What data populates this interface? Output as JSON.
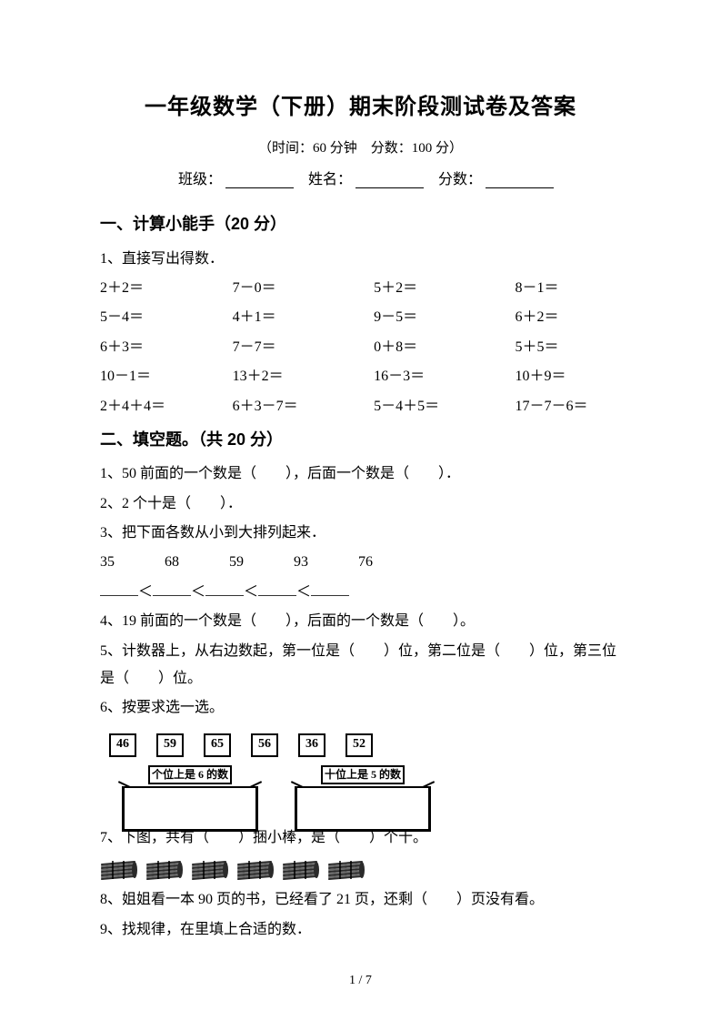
{
  "title": "一年级数学（下册）期末阶段测试卷及答案",
  "meta": {
    "time_label": "（时间：",
    "time": "60 分钟",
    "score_label": "分数：",
    "score": "100 分)",
    "full_line": "（时间：60 分钟 分数：100 分）"
  },
  "info": {
    "class": "班级：",
    "name": "姓名：",
    "score": "分数："
  },
  "section1": {
    "title": "一、计算小能手（20 分）",
    "q1": "1、直接写出得数．",
    "rows": [
      [
        "2＋2＝",
        "7－0＝",
        "5＋2＝",
        "8－1＝"
      ],
      [
        "5－4＝",
        "4＋1＝",
        "9－5＝",
        "6＋2＝"
      ],
      [
        "6＋3＝",
        "7－7＝",
        "0＋8＝",
        "5＋5＝"
      ],
      [
        "10－1＝",
        "13＋2＝",
        "16－3＝",
        "10＋9＝"
      ],
      [
        "2＋4＋4＝",
        "6＋3－7＝",
        "5－4＋5＝",
        "17－7－6＝"
      ]
    ]
  },
  "section2": {
    "title": "二、填空题。（共 20 分）",
    "q1": "1、50 前面的一个数是（  ），后面一个数是（  ）．",
    "q2": "2、2 个十是（  ）．",
    "q3a": "3、把下面各数从小到大排列起来．",
    "q3_nums": [
      "35",
      "68",
      "59",
      "93",
      "76"
    ],
    "q3_blank_pattern": "＿＿＿＜＿＿＿＜＿＿＿＜＿＿＿＜＿＿＿",
    "q4": "4、19 前面的一个数是（  ），后面的一个数是（  ）。",
    "q5": "5、计数器上，从右边数起，第一位是（  ）位，第二位是（  ）位，第三位是（  ）位。",
    "q6": "6、按要求选一选。",
    "q6_boxes": [
      "46",
      "59",
      "65",
      "56",
      "36",
      "52"
    ],
    "q6_bin1": "个位上是 6 的数",
    "q6_bin2": "十位上是 5 的数",
    "q7": "7、下图，共有（  ）捆小棒，是（  ）个十。",
    "q7_bundle_count": 6,
    "q8": "8、姐姐看一本 90 页的书，已经看了 21 页，还剩（  ）页没有看。",
    "q9": "9、找规律，在里填上合适的数．"
  },
  "page": "1 / 7",
  "colors": {
    "text": "#000000",
    "bg": "#ffffff",
    "bundle_dark": "#2a2a2a",
    "bundle_light": "#6a6a6a"
  }
}
